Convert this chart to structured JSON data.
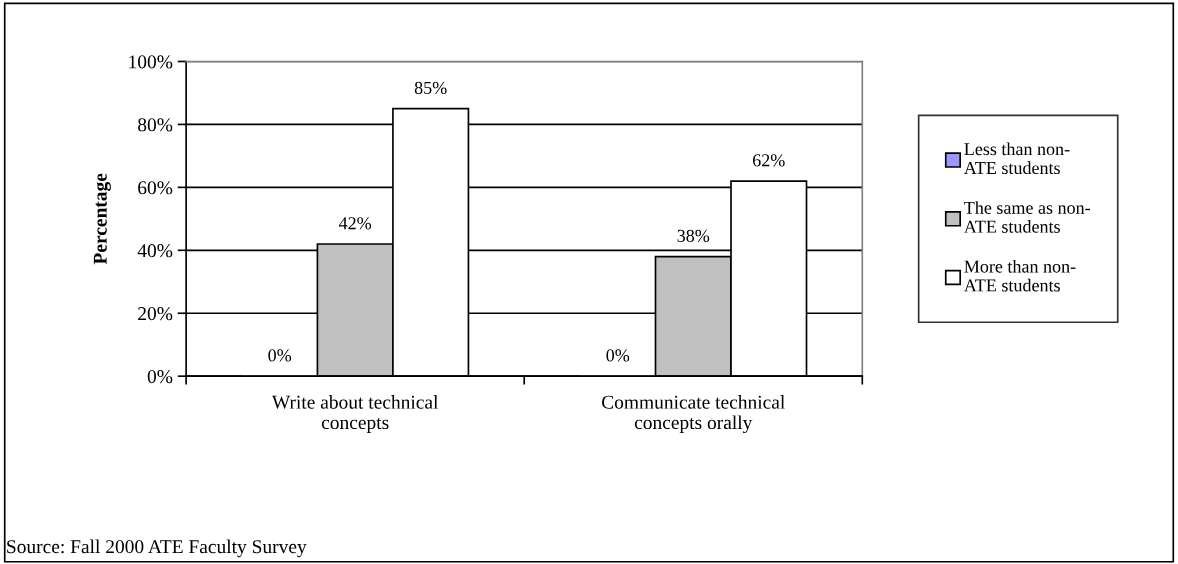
{
  "chart_data": {
    "type": "bar",
    "ylabel": "Percentage",
    "categories": [
      "Write about technical concepts",
      "Communicate technical concepts orally"
    ],
    "series": [
      {
        "name": "Less than non-ATE students",
        "color": "#9999ff",
        "values": [
          0,
          0
        ],
        "value_labels": [
          "0%",
          "0%"
        ]
      },
      {
        "name": "The same as non-ATE students",
        "color": "#c0c0c0",
        "values": [
          42,
          38
        ],
        "value_labels": [
          "42%",
          "38%"
        ]
      },
      {
        "name": "More than non-ATE students",
        "color": "#ffffff",
        "values": [
          85,
          62
        ],
        "value_labels": [
          "85%",
          "62%"
        ]
      }
    ],
    "ylim": [
      0,
      100
    ],
    "yticks": [
      {
        "value": 0,
        "label": "0%"
      },
      {
        "value": 20,
        "label": "20%"
      },
      {
        "value": 40,
        "label": "40%"
      },
      {
        "value": 60,
        "label": "60%"
      },
      {
        "value": 80,
        "label": "80%"
      },
      {
        "value": 100,
        "label": "100%"
      }
    ],
    "grid": "y",
    "legend": "right",
    "annotations": [
      "Source: Fall 2000 ATE Faculty Survey"
    ]
  }
}
